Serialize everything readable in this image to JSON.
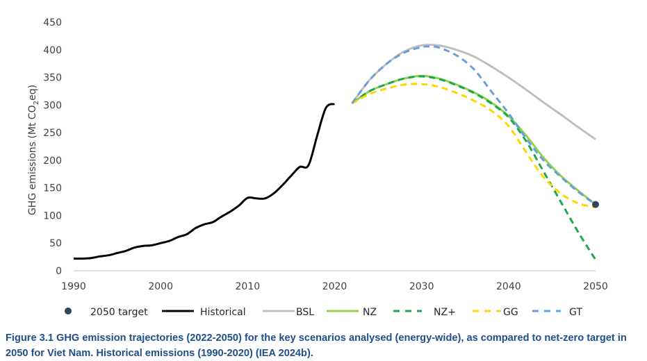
{
  "chart_data": {
    "type": "line",
    "ylabel": "GHG emissions (Mt CO2eq)",
    "ylabel_parts": {
      "pre": "GHG emissions (Mt CO",
      "sub": "2",
      "post": "eq)"
    },
    "xlim": [
      1990,
      2050
    ],
    "ylim": [
      0,
      450
    ],
    "x_ticks": [
      1990,
      2000,
      2010,
      2020,
      2030,
      2040,
      2050
    ],
    "y_ticks": [
      0,
      50,
      100,
      150,
      200,
      250,
      300,
      350,
      400,
      450
    ],
    "series": [
      {
        "name": "Historical",
        "color": "#000000",
        "style": "solid",
        "x": [
          1990,
          1991,
          1992,
          1993,
          1994,
          1995,
          1996,
          1997,
          1998,
          1999,
          2000,
          2001,
          2002,
          2003,
          2004,
          2005,
          2006,
          2007,
          2008,
          2009,
          2010,
          2011,
          2012,
          2013,
          2014,
          2015,
          2016,
          2017,
          2018,
          2019,
          2020
        ],
        "y": [
          22,
          22,
          23,
          26,
          28,
          32,
          36,
          42,
          45,
          46,
          50,
          54,
          61,
          66,
          77,
          84,
          88,
          98,
          107,
          118,
          132,
          131,
          131,
          140,
          155,
          172,
          188,
          191,
          245,
          295,
          302
        ]
      },
      {
        "name": "BSL",
        "color": "#bfbfbf",
        "style": "solid",
        "x": [
          2022,
          2024,
          2026,
          2028,
          2030,
          2032,
          2034,
          2036,
          2038,
          2040,
          2042,
          2044,
          2046,
          2048,
          2050
        ],
        "y": [
          303,
          345,
          375,
          397,
          408,
          408,
          400,
          388,
          370,
          350,
          328,
          305,
          283,
          260,
          238
        ]
      },
      {
        "name": "NZ",
        "color": "#92d050",
        "style": "solid",
        "x": [
          2022,
          2024,
          2026,
          2028,
          2030,
          2032,
          2034,
          2036,
          2038,
          2040,
          2042,
          2044,
          2046,
          2048,
          2050
        ],
        "y": [
          303,
          325,
          338,
          348,
          353,
          348,
          337,
          323,
          305,
          280,
          245,
          205,
          172,
          145,
          120
        ]
      },
      {
        "name": "NZ+",
        "color": "#1aa84a",
        "style": "dashed",
        "x": [
          2022,
          2024,
          2026,
          2028,
          2030,
          2032,
          2034,
          2036,
          2038,
          2040,
          2042,
          2044,
          2046,
          2048,
          2050
        ],
        "y": [
          303,
          325,
          338,
          348,
          352,
          347,
          336,
          322,
          303,
          278,
          235,
          180,
          125,
          70,
          20
        ]
      },
      {
        "name": "GG",
        "color": "#ffd700",
        "style": "dashed",
        "x": [
          2022,
          2024,
          2026,
          2028,
          2030,
          2032,
          2034,
          2036,
          2038,
          2040,
          2042,
          2044,
          2046,
          2048,
          2050
        ],
        "y": [
          303,
          320,
          330,
          337,
          338,
          333,
          322,
          308,
          290,
          262,
          215,
          170,
          140,
          122,
          115
        ]
      },
      {
        "name": "GT",
        "color": "#6a9fd8",
        "style": "dashed",
        "x": [
          2022,
          2024,
          2026,
          2028,
          2030,
          2031,
          2032,
          2034,
          2036,
          2038,
          2040,
          2042,
          2044,
          2046,
          2048,
          2050
        ],
        "y": [
          303,
          345,
          375,
          395,
          405,
          406,
          404,
          390,
          365,
          325,
          285,
          240,
          200,
          170,
          143,
          120
        ]
      }
    ],
    "points": [
      {
        "name": "2050 target",
        "x": 2050,
        "y": 120,
        "color": "#2f4260"
      }
    ],
    "legend": [
      {
        "label": "2050 target",
        "kind": "marker",
        "color": "#2f4260"
      },
      {
        "label": "Historical",
        "kind": "solid",
        "color": "#000000"
      },
      {
        "label": "BSL",
        "kind": "solid",
        "color": "#bfbfbf"
      },
      {
        "label": "NZ",
        "kind": "solid",
        "color": "#92d050"
      },
      {
        "label": "NZ+",
        "kind": "dashed",
        "color": "#1aa84a"
      },
      {
        "label": "GG",
        "kind": "dashed",
        "color": "#ffd700"
      },
      {
        "label": "GT",
        "kind": "dashed",
        "color": "#6a9fd8"
      }
    ],
    "legend_position": "bottom",
    "grid": false
  },
  "caption": "Figure 3.1 GHG emission trajectories (2022-2050) for the key scenarios analysed (energy-wide), as compared to net-zero target in 2050 for Viet Nam. Historical emissions (1990-2020) (IEA 2024b)."
}
